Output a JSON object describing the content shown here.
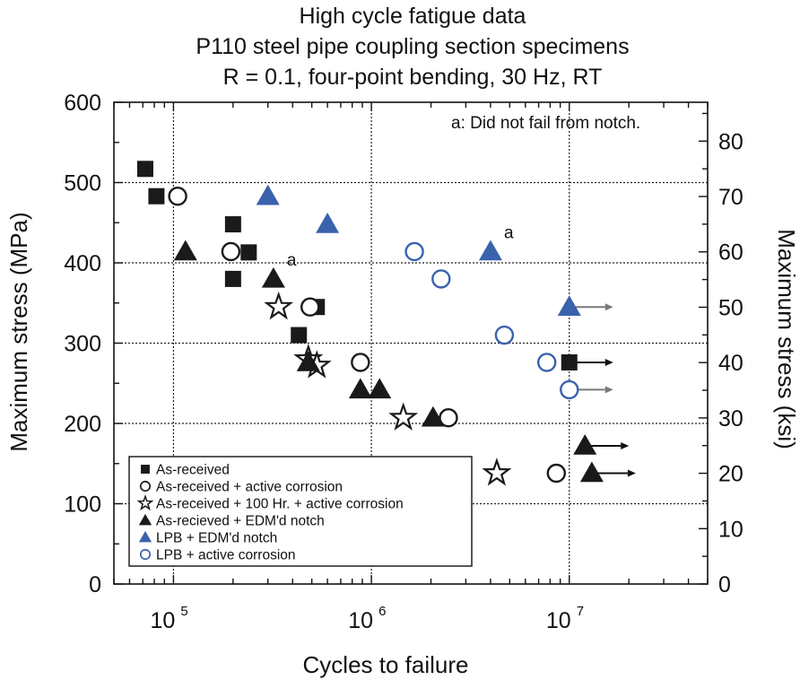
{
  "chart_data": {
    "type": "scatter",
    "title": [
      "High cycle fatigue data",
      "P110 steel pipe coupling section specimens",
      "R = 0.1, four-point bending, 30 Hz, RT"
    ],
    "xlabel": "Cycles to failure",
    "ylabel": "Maximum stress (MPa)",
    "ylabel_right": "Maximum stress (ksi)",
    "x_scale": "log",
    "xlim": [
      50000,
      50000000
    ],
    "ylim": [
      0,
      600
    ],
    "y_right_lim_ksi": [
      0,
      87.02
    ],
    "grid": true,
    "x_ticks": [
      {
        "value": 100000,
        "base": "10",
        "exp": "5"
      },
      {
        "value": 1000000,
        "base": "10",
        "exp": "6"
      },
      {
        "value": 10000000,
        "base": "10",
        "exp": "7"
      }
    ],
    "y_ticks": [
      "0",
      "100",
      "200",
      "300",
      "400",
      "500",
      "600"
    ],
    "y_right_ticks": [
      "0",
      "10",
      "20",
      "30",
      "40",
      "50",
      "60",
      "70",
      "80"
    ],
    "annotation": "a: Did not fail from notch.",
    "legend_position": "bottom-left",
    "series": [
      {
        "name": "As-received",
        "marker": "square-filled",
        "color": "#1a1a1a",
        "points": [
          {
            "x": 72000,
            "y": 517
          },
          {
            "x": 82000,
            "y": 483
          },
          {
            "x": 200000,
            "y": 448
          },
          {
            "x": 200000,
            "y": 380
          },
          {
            "x": 240000,
            "y": 413
          },
          {
            "x": 430000,
            "y": 310
          },
          {
            "x": 530000,
            "y": 345
          },
          {
            "x": 10000000,
            "y": 276,
            "runout": true
          }
        ]
      },
      {
        "name": "As-received + active corrosion",
        "marker": "circle-open",
        "color": "#1a1a1a",
        "points": [
          {
            "x": 105000,
            "y": 483
          },
          {
            "x": 195000,
            "y": 414
          },
          {
            "x": 490000,
            "y": 345
          },
          {
            "x": 880000,
            "y": 276
          },
          {
            "x": 2450000,
            "y": 207
          },
          {
            "x": 8600000,
            "y": 138
          }
        ]
      },
      {
        "name": "As-received + 100 Hr. + active corrosion",
        "marker": "star-open",
        "color": "#1a1a1a",
        "points": [
          {
            "x": 340000,
            "y": 345
          },
          {
            "x": 480000,
            "y": 280
          },
          {
            "x": 530000,
            "y": 272
          },
          {
            "x": 1450000,
            "y": 207
          },
          {
            "x": 4300000,
            "y": 138
          }
        ]
      },
      {
        "name": "As-recieved + EDM'd notch",
        "marker": "triangle-filled",
        "color": "#1a1a1a",
        "points": [
          {
            "x": 115000,
            "y": 414
          },
          {
            "x": 320000,
            "y": 380,
            "label": "a"
          },
          {
            "x": 480000,
            "y": 276
          },
          {
            "x": 880000,
            "y": 242
          },
          {
            "x": 1100000,
            "y": 242
          },
          {
            "x": 2050000,
            "y": 207
          },
          {
            "x": 12000000,
            "y": 172,
            "runout": true
          },
          {
            "x": 13000000,
            "y": 138,
            "runout": true
          }
        ]
      },
      {
        "name": "LPB + EDM'd notch",
        "marker": "triangle-filled",
        "color": "#3a62ad",
        "points": [
          {
            "x": 300000,
            "y": 483
          },
          {
            "x": 600000,
            "y": 448
          },
          {
            "x": 4000000,
            "y": 414,
            "label": "a"
          },
          {
            "x": 10000000,
            "y": 345,
            "runout": true
          }
        ]
      },
      {
        "name": "LPB + active corrosion",
        "marker": "circle-open",
        "color": "#3a62ad",
        "points": [
          {
            "x": 1650000,
            "y": 414
          },
          {
            "x": 2250000,
            "y": 380
          },
          {
            "x": 4700000,
            "y": 310
          },
          {
            "x": 7700000,
            "y": 276
          },
          {
            "x": 10000000,
            "y": 242,
            "runout": true
          }
        ]
      }
    ]
  }
}
